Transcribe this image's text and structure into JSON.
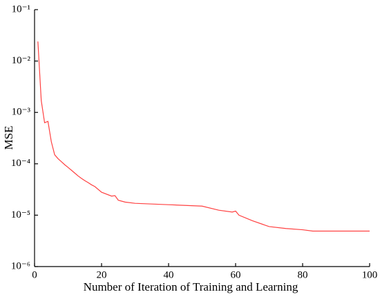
{
  "chart_data": {
    "type": "line",
    "xlabel": "Number of Iteration of Training and Learning",
    "ylabel": "MSE",
    "log_y": true,
    "color": "#ff4040",
    "x": [
      1,
      2,
      3,
      4,
      5,
      6,
      7,
      8,
      9,
      10,
      11,
      12,
      13,
      14,
      15,
      16,
      17,
      18,
      20,
      23,
      24,
      25,
      27,
      30,
      40,
      50,
      55,
      59,
      60,
      61,
      65,
      70,
      75,
      80,
      83,
      100
    ],
    "values": [
      0.024,
      0.0017,
      0.00063,
      0.00067,
      0.00027,
      0.00015,
      0.000126,
      0.00011,
      9.6e-05,
      8.5e-05,
      7.5e-05,
      6.6e-05,
      5.8e-05,
      5.2e-05,
      4.7e-05,
      4.3e-05,
      3.9e-05,
      3.6e-05,
      2.8e-05,
      2.35e-05,
      2.4e-05,
      1.95e-05,
      1.8e-05,
      1.7e-05,
      1.6e-05,
      1.5e-05,
      1.25e-05,
      1.15e-05,
      1.2e-05,
      1e-05,
      7.8e-06,
      6e-06,
      5.5e-06,
      5.2e-06,
      4.9e-06,
      4.9e-06
    ],
    "xlim": [
      0,
      100
    ],
    "xticks": [
      0,
      20,
      40,
      60,
      80,
      100
    ],
    "ylim": [
      1e-06,
      0.1
    ],
    "yticks": [
      {
        "value": 1e-06,
        "label": "10⁻⁶"
      },
      {
        "value": 1e-05,
        "label": "10⁻⁵"
      },
      {
        "value": 0.0001,
        "label": "10⁻⁴"
      },
      {
        "value": 0.001,
        "label": "10⁻³"
      },
      {
        "value": 0.01,
        "label": "10⁻²"
      },
      {
        "value": 0.1,
        "label": "10⁻¹"
      }
    ]
  }
}
